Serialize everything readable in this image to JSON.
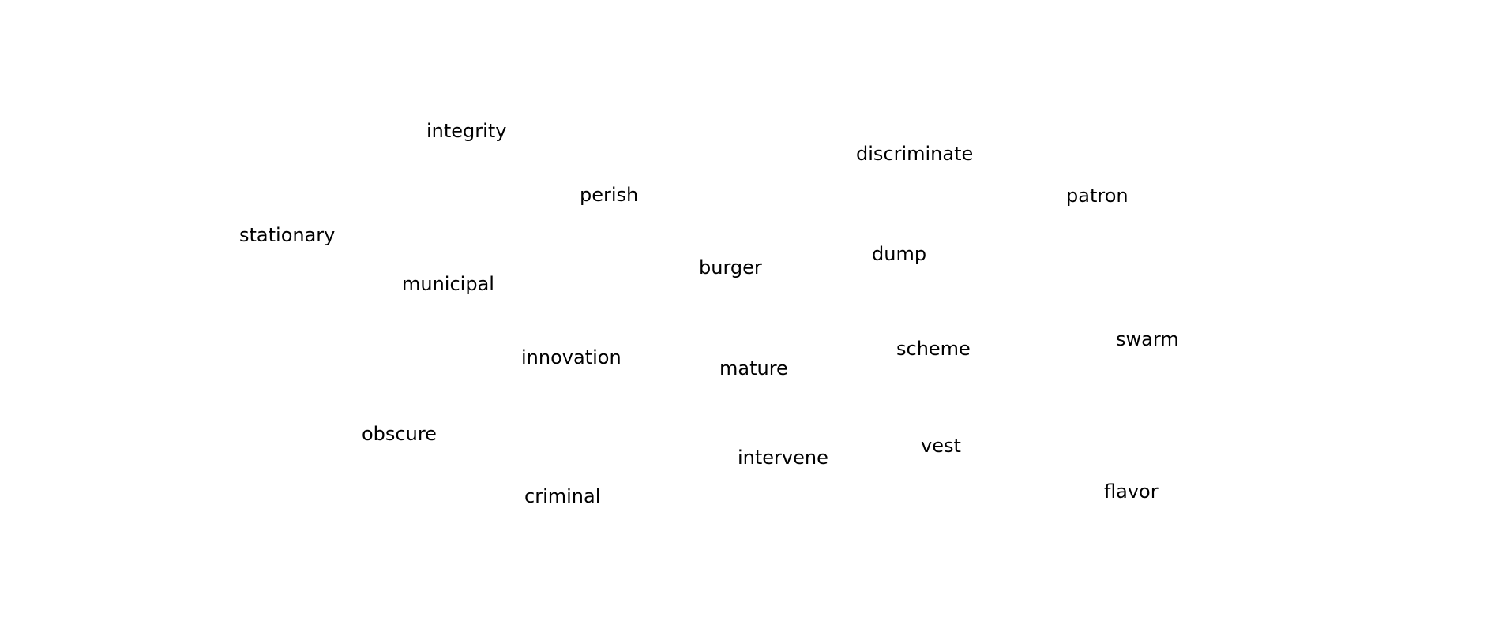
{
  "words": {
    "integrity": "integrity",
    "discriminate": "discriminate",
    "perish": "perish",
    "patron": "patron",
    "stationary": "stationary",
    "dump": "dump",
    "burger": "burger",
    "municipal": "municipal",
    "swarm": "swarm",
    "scheme": "scheme",
    "innovation": "innovation",
    "mature": "mature",
    "obscure": "obscure",
    "vest": "vest",
    "intervene": "intervene",
    "flavor": "flavor",
    "criminal": "criminal"
  },
  "colors": {
    "background": "#ffffff",
    "text": "#000000"
  }
}
